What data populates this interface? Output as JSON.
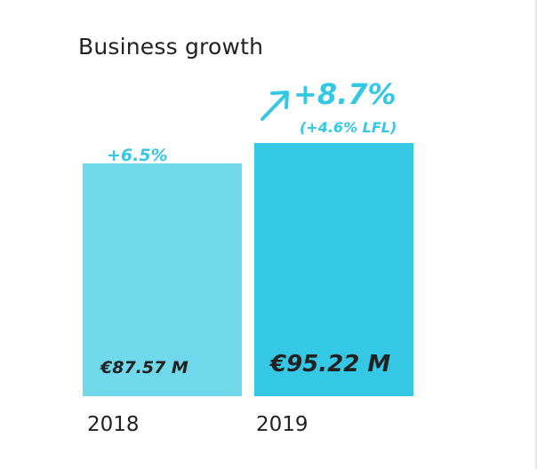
{
  "chart_data": {
    "type": "bar",
    "title": "Business growth",
    "categories": [
      "2018",
      "2019"
    ],
    "values": [
      87.57,
      95.22
    ],
    "value_labels": [
      "€87.57 M",
      "€95.22 M"
    ],
    "growth_labels": [
      "+6.5%",
      "+8.7%"
    ],
    "sub_growth_label": "(+4.6% LFL)",
    "unit": "€ M",
    "colors": [
      "#6fd8ea",
      "#35c8e4"
    ],
    "accent": "#35c8e4",
    "text_color": "#222222",
    "grid": false
  }
}
